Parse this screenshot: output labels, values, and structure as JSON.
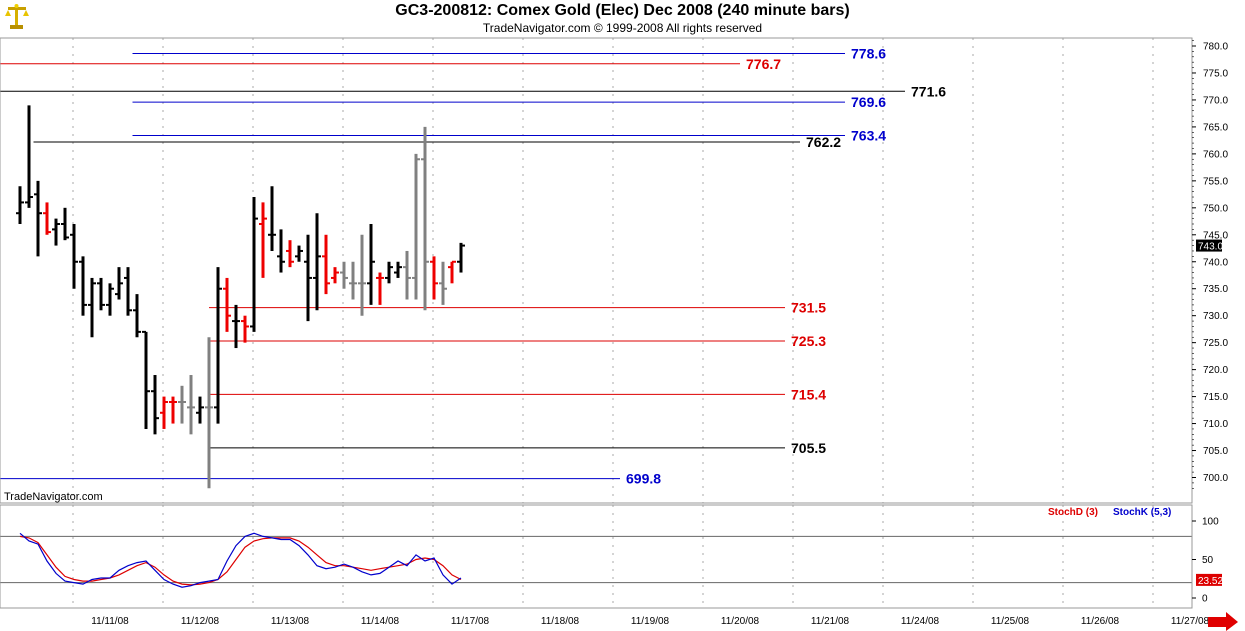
{
  "header": {
    "title": "GC3-200812:  Comex Gold (Elec) Dec 2008  (240 minute bars)",
    "subtitle": "TradeNavigator.com © 1999-2008 All rights reserved"
  },
  "watermark": "TradeNavigator.com",
  "colors": {
    "up": "#000000",
    "down": "#ee0000",
    "inside": "#808080",
    "blue_level": "#0000cc",
    "red_level": "#dd0000",
    "black_level": "#000000",
    "stoch_d": "#dd0000",
    "stoch_k": "#0000cc",
    "last_price_bg": "#000000",
    "last_stoch_bg": "#dd0000"
  },
  "nav_icon": "right-arrow-icon",
  "logo_icon": "scale-balance-icon",
  "chart_data": {
    "type": "ohlc-bar",
    "price_axis": {
      "ylim": [
        697,
        781
      ],
      "ticks": [
        "780.0",
        "775.0",
        "770.0",
        "765.0",
        "760.0",
        "755.0",
        "750.0",
        "745.0",
        "740.0",
        "735.0",
        "730.0",
        "725.0",
        "720.0",
        "715.0",
        "710.0",
        "705.0",
        "700.0"
      ],
      "last_price": "743.0"
    },
    "x_axis": {
      "dates": [
        "11/11/08",
        "11/12/08",
        "11/13/08",
        "11/14/08",
        "11/17/08",
        "11/18/08",
        "11/19/08",
        "11/20/08",
        "11/21/08",
        "11/24/08",
        "11/25/08",
        "11/26/08",
        "11/27/08"
      ]
    },
    "bars": [
      {
        "o": 749.0,
        "h": 754.0,
        "l": 747.0,
        "c": 751.0,
        "t": "up"
      },
      {
        "o": 751.0,
        "h": 769.0,
        "l": 750.0,
        "c": 752.0,
        "t": "up"
      },
      {
        "o": 752.5,
        "h": 755.0,
        "l": 741.0,
        "c": 749.0,
        "t": "up"
      },
      {
        "o": 749.0,
        "h": 751.0,
        "l": 745.0,
        "c": 745.5,
        "t": "down"
      },
      {
        "o": 746.0,
        "h": 748.0,
        "l": 743.0,
        "c": 747.0,
        "t": "up"
      },
      {
        "o": 747.0,
        "h": 750.0,
        "l": 744.0,
        "c": 744.5,
        "t": "up"
      },
      {
        "o": 745.0,
        "h": 747.0,
        "l": 735.0,
        "c": 740.0,
        "t": "up"
      },
      {
        "o": 740.0,
        "h": 741.0,
        "l": 730.0,
        "c": 732.0,
        "t": "up"
      },
      {
        "o": 732.0,
        "h": 737.0,
        "l": 726.0,
        "c": 736.0,
        "t": "up"
      },
      {
        "o": 736.0,
        "h": 737.0,
        "l": 731.0,
        "c": 732.0,
        "t": "up"
      },
      {
        "o": 732.0,
        "h": 736.0,
        "l": 730.0,
        "c": 735.0,
        "t": "up"
      },
      {
        "o": 734.0,
        "h": 739.0,
        "l": 733.0,
        "c": 736.0,
        "t": "up"
      },
      {
        "o": 737.0,
        "h": 739.0,
        "l": 730.0,
        "c": 731.0,
        "t": "up"
      },
      {
        "o": 731.0,
        "h": 734.0,
        "l": 726.0,
        "c": 727.0,
        "t": "up"
      },
      {
        "o": 727.0,
        "h": 727.0,
        "l": 709.0,
        "c": 716.0,
        "t": "up"
      },
      {
        "o": 716.0,
        "h": 719.0,
        "l": 708.0,
        "c": 711.0,
        "t": "up"
      },
      {
        "o": 712.0,
        "h": 715.0,
        "l": 709.0,
        "c": 714.0,
        "t": "down"
      },
      {
        "o": 714.0,
        "h": 715.0,
        "l": 710.0,
        "c": 714.0,
        "t": "down"
      },
      {
        "o": 714.0,
        "h": 717.0,
        "l": 710.0,
        "c": 714.0,
        "t": "inside"
      },
      {
        "o": 713.0,
        "h": 719.0,
        "l": 708.0,
        "c": 713.0,
        "t": "inside"
      },
      {
        "o": 712.0,
        "h": 715.0,
        "l": 710.0,
        "c": 713.0,
        "t": "up"
      },
      {
        "o": 713.0,
        "h": 726.0,
        "l": 698.0,
        "c": 713.0,
        "t": "inside"
      },
      {
        "o": 713.0,
        "h": 739.0,
        "l": 710.0,
        "c": 735.0,
        "t": "up"
      },
      {
        "o": 735.0,
        "h": 737.0,
        "l": 727.0,
        "c": 730.0,
        "t": "down"
      },
      {
        "o": 729.0,
        "h": 732.0,
        "l": 724.0,
        "c": 729.0,
        "t": "up"
      },
      {
        "o": 729.0,
        "h": 730.0,
        "l": 725.0,
        "c": 728.0,
        "t": "down"
      },
      {
        "o": 728.0,
        "h": 752.0,
        "l": 727.0,
        "c": 748.0,
        "t": "up"
      },
      {
        "o": 747.0,
        "h": 751.0,
        "l": 737.0,
        "c": 748.0,
        "t": "down"
      },
      {
        "o": 745.0,
        "h": 754.0,
        "l": 742.0,
        "c": 745.0,
        "t": "up"
      },
      {
        "o": 741.0,
        "h": 746.0,
        "l": 738.0,
        "c": 740.0,
        "t": "up"
      },
      {
        "o": 742.0,
        "h": 744.0,
        "l": 739.0,
        "c": 740.0,
        "t": "down"
      },
      {
        "o": 741.0,
        "h": 743.0,
        "l": 740.0,
        "c": 742.0,
        "t": "up"
      },
      {
        "o": 740.0,
        "h": 745.0,
        "l": 729.0,
        "c": 737.0,
        "t": "up"
      },
      {
        "o": 737.0,
        "h": 749.0,
        "l": 731.0,
        "c": 741.0,
        "t": "up"
      },
      {
        "o": 741.0,
        "h": 745.0,
        "l": 734.0,
        "c": 736.0,
        "t": "down"
      },
      {
        "o": 737.0,
        "h": 739.0,
        "l": 736.0,
        "c": 738.0,
        "t": "down"
      },
      {
        "o": 738.0,
        "h": 740.0,
        "l": 735.0,
        "c": 737.0,
        "t": "inside"
      },
      {
        "o": 736.0,
        "h": 740.0,
        "l": 733.0,
        "c": 736.0,
        "t": "inside"
      },
      {
        "o": 736.0,
        "h": 745.0,
        "l": 730.0,
        "c": 736.0,
        "t": "inside"
      },
      {
        "o": 736.0,
        "h": 747.0,
        "l": 732.0,
        "c": 740.0,
        "t": "up"
      },
      {
        "o": 737.0,
        "h": 738.0,
        "l": 732.0,
        "c": 737.0,
        "t": "down"
      },
      {
        "o": 737.0,
        "h": 740.0,
        "l": 736.0,
        "c": 739.0,
        "t": "up"
      },
      {
        "o": 738.0,
        "h": 740.0,
        "l": 737.0,
        "c": 739.0,
        "t": "up"
      },
      {
        "o": 739.0,
        "h": 742.0,
        "l": 733.0,
        "c": 737.0,
        "t": "inside"
      },
      {
        "o": 737.0,
        "h": 760.0,
        "l": 733.0,
        "c": 759.0,
        "t": "inside"
      },
      {
        "o": 759.0,
        "h": 765.0,
        "l": 731.0,
        "c": 740.0,
        "t": "inside"
      },
      {
        "o": 740.0,
        "h": 741.0,
        "l": 733.0,
        "c": 736.0,
        "t": "down"
      },
      {
        "o": 736.0,
        "h": 740.0,
        "l": 732.0,
        "c": 735.0,
        "t": "inside"
      },
      {
        "o": 739.0,
        "h": 740.0,
        "l": 736.0,
        "c": 740.0,
        "t": "down"
      },
      {
        "o": 740.0,
        "h": 743.5,
        "l": 738.0,
        "c": 743.0,
        "t": "up"
      }
    ],
    "levels": [
      {
        "value": 778.6,
        "label": "778.6",
        "color": "blue",
        "from_bar": 12.5
      },
      {
        "value": 776.7,
        "label": "776.7",
        "color": "red",
        "from_bar": -1
      },
      {
        "value": 771.6,
        "label": "771.6",
        "color": "black",
        "from_bar": -1
      },
      {
        "value": 769.6,
        "label": "769.6",
        "color": "blue",
        "from_bar": 12.5
      },
      {
        "value": 763.4,
        "label": "763.4",
        "color": "blue",
        "from_bar": 12.5
      },
      {
        "value": 762.2,
        "label": "762.2",
        "color": "black",
        "from_bar": 1.5
      },
      {
        "value": 731.5,
        "label": "731.5",
        "color": "red",
        "from_bar": 21
      },
      {
        "value": 725.3,
        "label": "725.3",
        "color": "red",
        "from_bar": 21
      },
      {
        "value": 715.4,
        "label": "715.4",
        "color": "red",
        "from_bar": 21
      },
      {
        "value": 705.5,
        "label": "705.5",
        "color": "black",
        "from_bar": 21
      },
      {
        "value": 699.8,
        "label": "699.8",
        "color": "blue",
        "from_bar": -1
      }
    ],
    "stochastic": {
      "legend": [
        "StochD (3)",
        "StochK (5,3)"
      ],
      "ticks": [
        "100",
        "50",
        "0"
      ],
      "ref_lines": [
        80,
        20
      ],
      "last_value": "23.52",
      "stoch_d": [
        80,
        78,
        72,
        56,
        40,
        28,
        24,
        22,
        22,
        24,
        26,
        30,
        36,
        42,
        46,
        40,
        30,
        22,
        18,
        17,
        18,
        20,
        24,
        34,
        50,
        66,
        74,
        77,
        78,
        78,
        78,
        74,
        66,
        56,
        46,
        42,
        42,
        40,
        38,
        36,
        38,
        40,
        42,
        44,
        50,
        52,
        50,
        42,
        30,
        24
      ],
      "stoch_k": [
        84,
        74,
        70,
        48,
        32,
        22,
        20,
        18,
        24,
        26,
        26,
        36,
        42,
        46,
        48,
        36,
        24,
        18,
        14,
        16,
        20,
        22,
        24,
        48,
        68,
        80,
        84,
        80,
        78,
        76,
        76,
        68,
        56,
        42,
        38,
        40,
        44,
        40,
        34,
        30,
        32,
        40,
        48,
        42,
        56,
        48,
        52,
        30,
        18,
        26
      ]
    }
  }
}
